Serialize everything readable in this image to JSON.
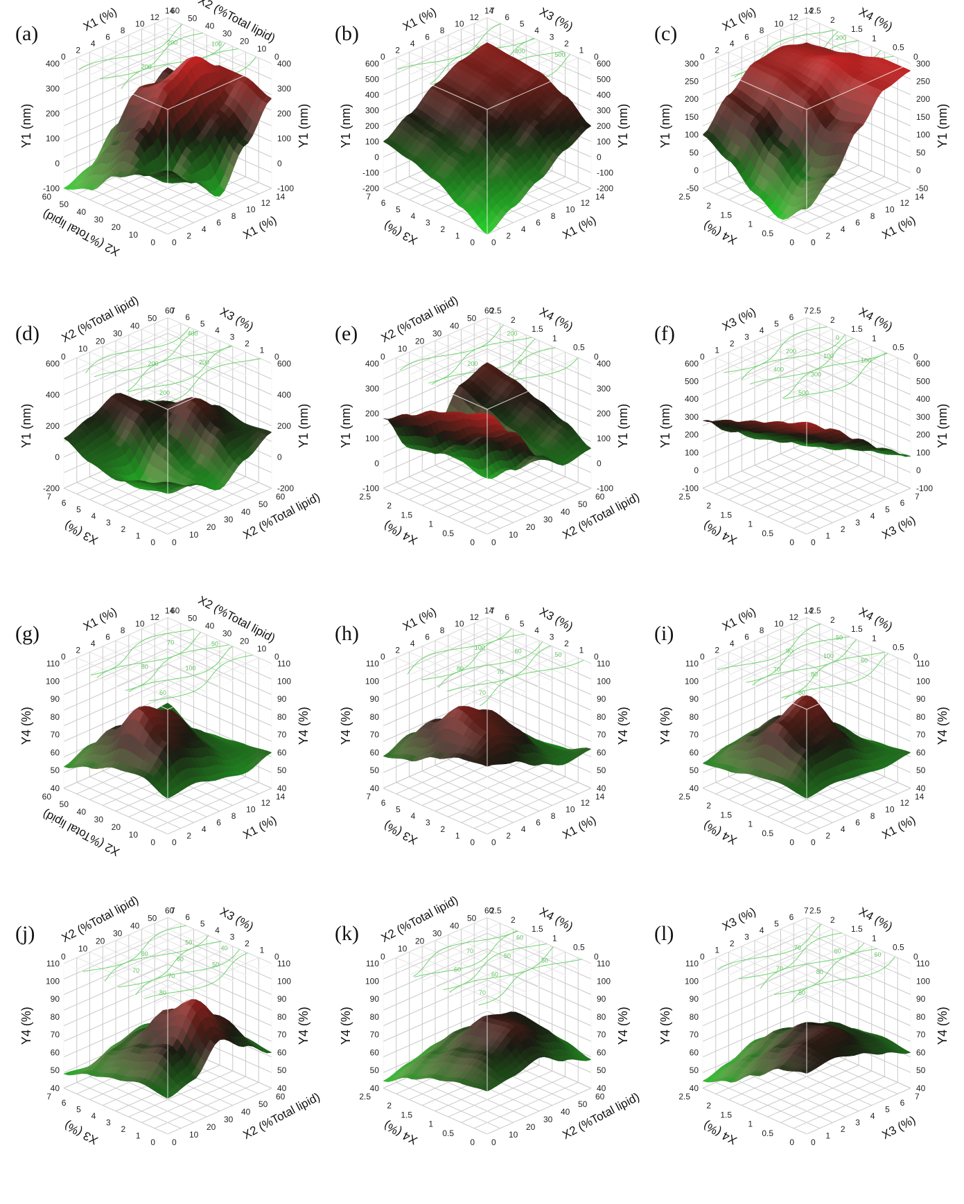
{
  "colors": {
    "grid": "#c9c9c9",
    "box": "#ffffff",
    "contour": "#6fd36f",
    "high": "#d42424",
    "mid": "#1a1a12",
    "low": "#27d22c",
    "highlight": "#ffb0b0"
  },
  "chart_data": [
    {
      "id": "a",
      "type": "surface3d",
      "panel_label": "(a)",
      "axis_x": {
        "label": "X1 (%)",
        "ticks": [
          "0",
          "2",
          "4",
          "6",
          "8",
          "10",
          "12",
          "14"
        ],
        "range": [
          0,
          14
        ]
      },
      "axis_y": {
        "label": "X2 (%Total lipid)",
        "ticks": [
          "0",
          "10",
          "20",
          "30",
          "40",
          "50",
          "60"
        ],
        "range": [
          0,
          60
        ]
      },
      "axis_z": {
        "label": "Y1 (nm)",
        "ticks": [
          "-100",
          "0",
          "100",
          "200",
          "300",
          "400"
        ],
        "range": [
          -100,
          400
        ]
      },
      "contour_labels": [
        "100",
        "200",
        "300",
        "200",
        "100"
      ],
      "grid": [
        [
          150,
          60,
          -40,
          120,
          260
        ],
        [
          90,
          20,
          120,
          200,
          300
        ],
        [
          40,
          180,
          320,
          380,
          300
        ],
        [
          -60,
          80,
          260,
          240,
          180
        ],
        [
          -100,
          -60,
          60,
          120,
          200
        ]
      ]
    },
    {
      "id": "b",
      "type": "surface3d",
      "panel_label": "(b)",
      "axis_x": {
        "label": "X1 (%)",
        "ticks": [
          "0",
          "2",
          "4",
          "6",
          "8",
          "10",
          "12",
          "14"
        ],
        "range": [
          0,
          14
        ]
      },
      "axis_y": {
        "label": "X3 (%)",
        "ticks": [
          "0",
          "1",
          "2",
          "3",
          "4",
          "5",
          "6",
          "7"
        ],
        "range": [
          0,
          7
        ]
      },
      "axis_z": {
        "label": "Y1 (nm)",
        "ticks": [
          "-200",
          "-100",
          "0",
          "100",
          "200",
          "300",
          "400",
          "500",
          "600"
        ],
        "range": [
          -200,
          600
        ]
      },
      "contour_labels": [
        "100",
        "100",
        "200",
        "300",
        "400",
        "500"
      ],
      "grid": [
        [
          -200,
          -100,
          0,
          120,
          200
        ],
        [
          -100,
          0,
          120,
          240,
          320
        ],
        [
          0,
          100,
          240,
          340,
          400
        ],
        [
          60,
          160,
          300,
          380,
          420
        ],
        [
          100,
          200,
          320,
          400,
          440
        ]
      ]
    },
    {
      "id": "c",
      "type": "surface3d",
      "panel_label": "(c)",
      "axis_x": {
        "label": "X1 (%)",
        "ticks": [
          "0",
          "2",
          "4",
          "6",
          "8",
          "10",
          "12",
          "14"
        ],
        "range": [
          0,
          14
        ]
      },
      "axis_y": {
        "label": "X4 (%)",
        "ticks": [
          "0",
          "0.5",
          "1",
          "1.5",
          "2",
          "2.5"
        ],
        "range": [
          0,
          2.5
        ]
      },
      "axis_z": {
        "label": "Y1 (nm)",
        "ticks": [
          "-50",
          "0",
          "50",
          "100",
          "150",
          "200",
          "250",
          "300"
        ],
        "range": [
          -50,
          300
        ]
      },
      "contour_labels": [
        "50",
        "100",
        "150",
        "200",
        "250",
        "250",
        "200"
      ],
      "grid": [
        [
          20,
          80,
          180,
          260,
          280
        ],
        [
          -40,
          40,
          160,
          260,
          280
        ],
        [
          0,
          100,
          220,
          280,
          260
        ],
        [
          60,
          160,
          240,
          260,
          240
        ],
        [
          100,
          180,
          240,
          250,
          230
        ]
      ]
    },
    {
      "id": "d",
      "type": "surface3d",
      "panel_label": "(d)",
      "axis_x": {
        "label": "X2 (%Total lipid)",
        "ticks": [
          "0",
          "10",
          "20",
          "30",
          "40",
          "50",
          "60"
        ],
        "range": [
          0,
          60
        ]
      },
      "axis_y": {
        "label": "X3 (%)",
        "ticks": [
          "0",
          "1",
          "2",
          "3",
          "4",
          "5",
          "6",
          "7"
        ],
        "range": [
          0,
          7
        ]
      },
      "axis_z": {
        "label": "Y1 (nm)",
        "ticks": [
          "-200",
          "0",
          "200",
          "400",
          "600"
        ],
        "range": [
          -200,
          600
        ]
      },
      "contour_labels": [
        "200",
        "200",
        "200",
        "400"
      ],
      "grid": [
        [
          120,
          40,
          -60,
          60,
          160
        ],
        [
          60,
          -80,
          0,
          200,
          140
        ],
        [
          0,
          -120,
          100,
          300,
          180
        ],
        [
          40,
          60,
          240,
          200,
          100
        ],
        [
          120,
          180,
          260,
          140,
          60
        ]
      ]
    },
    {
      "id": "e",
      "type": "surface3d",
      "panel_label": "(e)",
      "axis_x": {
        "label": "X2 (%Total lipid)",
        "ticks": [
          "0",
          "10",
          "20",
          "30",
          "40",
          "50",
          "60"
        ],
        "range": [
          0,
          60
        ]
      },
      "axis_y": {
        "label": "X4 (%)",
        "ticks": [
          "0",
          "0.5",
          "1",
          "1.5",
          "2",
          "2.5"
        ],
        "range": [
          0,
          2.5
        ]
      },
      "axis_z": {
        "label": "Y1 (nm)",
        "ticks": [
          "-100",
          "0",
          "100",
          "200",
          "300",
          "400"
        ],
        "range": [
          -100,
          400
        ]
      },
      "contour_labels": [
        "100",
        "200",
        "0",
        "200"
      ],
      "grid": [
        [
          380,
          260,
          120,
          40,
          60
        ],
        [
          340,
          200,
          20,
          60,
          120
        ],
        [
          300,
          120,
          -60,
          100,
          160
        ],
        [
          240,
          40,
          -20,
          140,
          200
        ],
        [
          180,
          20,
          40,
          180,
          220
        ]
      ]
    },
    {
      "id": "f",
      "type": "surface3d",
      "panel_label": "(f)",
      "axis_x": {
        "label": "X3 (%)",
        "ticks": [
          "0",
          "1",
          "2",
          "3",
          "4",
          "5",
          "6",
          "7"
        ],
        "range": [
          0,
          7
        ]
      },
      "axis_y": {
        "label": "X4 (%)",
        "ticks": [
          "0",
          "0.5",
          "1",
          "1.5",
          "2",
          "2.5"
        ],
        "range": [
          0,
          2.5
        ]
      },
      "axis_z": {
        "label": "Y1 (nm)",
        "ticks": [
          "-100",
          "0",
          "100",
          "200",
          "300",
          "400",
          "500",
          "600"
        ],
        "range": [
          -100,
          600
        ]
      },
      "contour_labels": [
        "500",
        "400",
        "300",
        "200",
        "100",
        "100",
        "0"
      ],
      "grid": [
        [
          520,
          420,
          300,
          180,
          80
        ],
        [
          460,
          340,
          220,
          120,
          40
        ],
        [
          400,
          280,
          160,
          60,
          0
        ],
        [
          340,
          220,
          100,
          20,
          -20
        ],
        [
          280,
          160,
          60,
          0,
          -40
        ]
      ]
    },
    {
      "id": "g",
      "type": "surface3d",
      "panel_label": "(g)",
      "axis_x": {
        "label": "X1 (%)",
        "ticks": [
          "0",
          "2",
          "4",
          "6",
          "8",
          "10",
          "12",
          "14"
        ],
        "range": [
          0,
          14
        ]
      },
      "axis_y": {
        "label": "X2 (%Total lipid)",
        "ticks": [
          "0",
          "10",
          "20",
          "30",
          "40",
          "50",
          "60"
        ],
        "range": [
          0,
          60
        ]
      },
      "axis_z": {
        "label": "Y4 (%)",
        "ticks": [
          "40",
          "50",
          "60",
          "70",
          "80",
          "90",
          "100",
          "110"
        ],
        "range": [
          40,
          110
        ]
      },
      "contour_labels": [
        "60",
        "80",
        "100",
        "70",
        "50"
      ],
      "grid": [
        [
          60,
          62,
          58,
          55,
          60
        ],
        [
          66,
          80,
          74,
          62,
          58
        ],
        [
          64,
          92,
          84,
          66,
          56
        ],
        [
          58,
          74,
          70,
          62,
          54
        ],
        [
          52,
          58,
          56,
          60,
          62
        ]
      ]
    },
    {
      "id": "h",
      "type": "surface3d",
      "panel_label": "(h)",
      "axis_x": {
        "label": "X1 (%)",
        "ticks": [
          "0",
          "2",
          "4",
          "6",
          "8",
          "10",
          "12",
          "14"
        ],
        "range": [
          0,
          14
        ]
      },
      "axis_y": {
        "label": "X3 (%)",
        "ticks": [
          "0",
          "1",
          "2",
          "3",
          "4",
          "5",
          "6",
          "7"
        ],
        "range": [
          0,
          7
        ]
      },
      "axis_z": {
        "label": "Y4 (%)",
        "ticks": [
          "40",
          "50",
          "60",
          "70",
          "80",
          "90",
          "100",
          "110"
        ],
        "range": [
          40,
          110
        ]
      },
      "contour_labels": [
        "70",
        "80",
        "70",
        "100",
        "60",
        "50"
      ],
      "grid": [
        [
          78,
          74,
          66,
          60,
          62
        ],
        [
          76,
          86,
          80,
          64,
          56
        ],
        [
          70,
          92,
          84,
          66,
          54
        ],
        [
          62,
          78,
          72,
          60,
          50
        ],
        [
          58,
          64,
          60,
          52,
          48
        ]
      ]
    },
    {
      "id": "i",
      "type": "surface3d",
      "panel_label": "(i)",
      "axis_x": {
        "label": "X1 (%)",
        "ticks": [
          "0",
          "2",
          "4",
          "6",
          "8",
          "10",
          "12",
          "14"
        ],
        "range": [
          0,
          14
        ]
      },
      "axis_y": {
        "label": "X4 (%)",
        "ticks": [
          "0",
          "0.5",
          "1",
          "1.5",
          "2",
          "2.5"
        ],
        "range": [
          0,
          2.5
        ]
      },
      "axis_z": {
        "label": "Y4 (%)",
        "ticks": [
          "40",
          "50",
          "60",
          "70",
          "80",
          "90",
          "100",
          "110"
        ],
        "range": [
          40,
          110
        ]
      },
      "contour_labels": [
        "60",
        "70",
        "80",
        "90",
        "100",
        "60",
        "50"
      ],
      "grid": [
        [
          60,
          62,
          60,
          58,
          60
        ],
        [
          62,
          76,
          80,
          66,
          58
        ],
        [
          60,
          84,
          92,
          70,
          56
        ],
        [
          56,
          70,
          74,
          62,
          54
        ],
        [
          54,
          58,
          60,
          58,
          56
        ]
      ]
    },
    {
      "id": "j",
      "type": "surface3d",
      "panel_label": "(j)",
      "axis_x": {
        "label": "X2 (%Total lipid)",
        "ticks": [
          "0",
          "10",
          "20",
          "30",
          "40",
          "50",
          "60"
        ],
        "range": [
          0,
          60
        ]
      },
      "axis_y": {
        "label": "X3 (%)",
        "ticks": [
          "0",
          "1",
          "2",
          "3",
          "4",
          "5",
          "6",
          "7"
        ],
        "range": [
          0,
          7
        ]
      },
      "axis_z": {
        "label": "Y4 (%)",
        "ticks": [
          "40",
          "50",
          "60",
          "70",
          "80",
          "90",
          "100",
          "110"
        ],
        "range": [
          40,
          110
        ]
      },
      "contour_labels": [
        "80",
        "70",
        "70",
        "60",
        "60",
        "50",
        "50",
        "40"
      ],
      "grid": [
        [
          60,
          64,
          80,
          70,
          60
        ],
        [
          62,
          76,
          96,
          80,
          62
        ],
        [
          58,
          70,
          84,
          76,
          60
        ],
        [
          54,
          62,
          66,
          64,
          56
        ],
        [
          48,
          46,
          52,
          56,
          52
        ]
      ]
    },
    {
      "id": "k",
      "type": "surface3d",
      "panel_label": "(k)",
      "axis_x": {
        "label": "X2 (%Total lipid)",
        "ticks": [
          "0",
          "10",
          "20",
          "30",
          "40",
          "50",
          "60"
        ],
        "range": [
          0,
          60
        ]
      },
      "axis_y": {
        "label": "X4 (%)",
        "ticks": [
          "0",
          "0.5",
          "1",
          "1.5",
          "2",
          "2.5"
        ],
        "range": [
          0,
          2.5
        ]
      },
      "axis_z": {
        "label": "Y4 (%)",
        "ticks": [
          "40",
          "50",
          "60",
          "70",
          "80",
          "90",
          "100",
          "110"
        ],
        "range": [
          40,
          110
        ]
      },
      "contour_labels": [
        "70",
        "60",
        "60",
        "70",
        "50",
        "50",
        "60"
      ],
      "grid": [
        [
          64,
          66,
          70,
          62,
          56
        ],
        [
          62,
          72,
          82,
          74,
          60
        ],
        [
          58,
          68,
          80,
          76,
          62
        ],
        [
          52,
          60,
          66,
          64,
          56
        ],
        [
          44,
          48,
          52,
          54,
          50
        ]
      ]
    },
    {
      "id": "l",
      "type": "surface3d",
      "panel_label": "(l)",
      "axis_x": {
        "label": "X3 (%)",
        "ticks": [
          "0",
          "1",
          "2",
          "3",
          "4",
          "5",
          "6",
          "7"
        ],
        "range": [
          0,
          7
        ]
      },
      "axis_y": {
        "label": "X4 (%)",
        "ticks": [
          "0",
          "0.5",
          "1",
          "1.5",
          "2",
          "2.5"
        ],
        "range": [
          0,
          2.5
        ]
      },
      "axis_z": {
        "label": "Y4 (%)",
        "ticks": [
          "40",
          "50",
          "60",
          "70",
          "80",
          "90",
          "100",
          "110"
        ],
        "range": [
          40,
          110
        ]
      },
      "contour_labels": [
        "50",
        "70",
        "80",
        "70",
        "60",
        "60"
      ],
      "grid": [
        [
          74,
          76,
          72,
          66,
          60
        ],
        [
          70,
          78,
          80,
          70,
          62
        ],
        [
          60,
          70,
          76,
          70,
          60
        ],
        [
          50,
          58,
          66,
          62,
          54
        ],
        [
          44,
          48,
          54,
          52,
          48
        ]
      ]
    }
  ]
}
